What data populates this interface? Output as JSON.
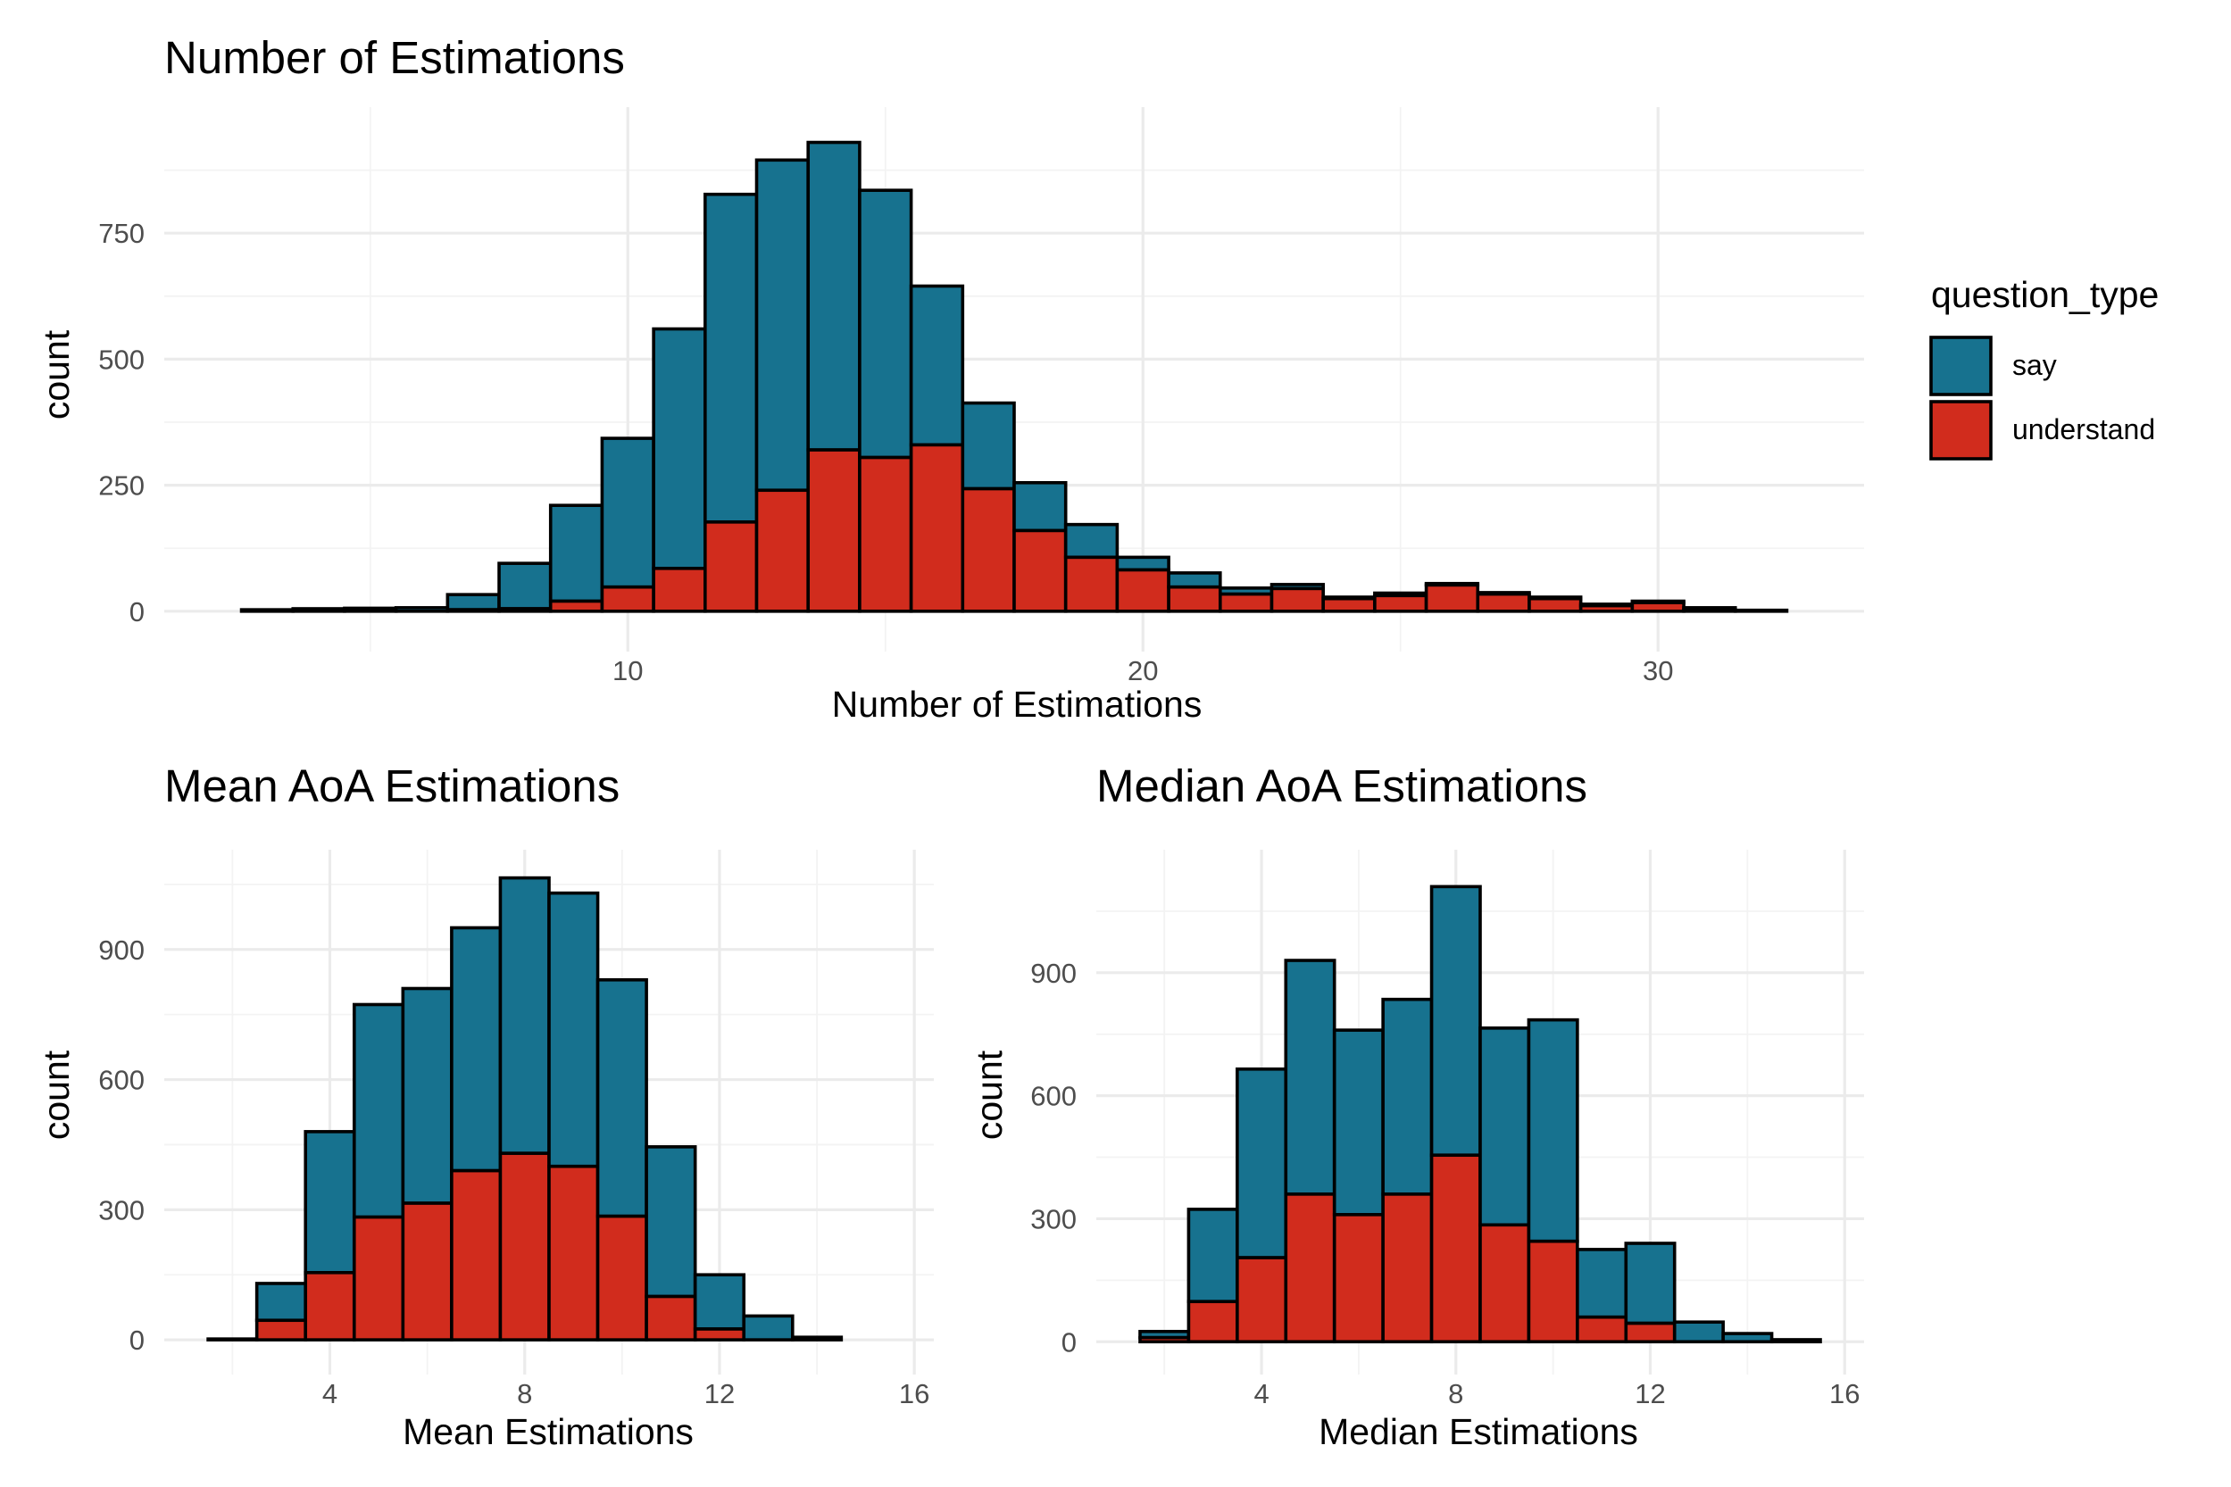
{
  "chart_data": [
    {
      "type": "bar",
      "stacked": true,
      "title": "Number of Estimations",
      "xlabel": "Number of Estimations",
      "ylabel": "count",
      "xlim": [
        1,
        34
      ],
      "ylim": [
        -80,
        1000
      ],
      "xticks": [
        10,
        20,
        30
      ],
      "yticks": [
        0,
        250,
        500,
        750
      ],
      "grid": true,
      "bin_width": 1,
      "bin_centers": [
        3,
        4,
        5,
        6,
        7,
        8,
        9,
        10,
        11,
        12,
        13,
        14,
        15,
        16,
        17,
        18,
        19,
        20,
        21,
        22,
        23,
        24,
        25,
        26,
        27,
        28,
        29,
        30,
        31,
        32
      ],
      "series": [
        {
          "name": "say",
          "values": [
            3,
            5,
            6,
            7,
            30,
            90,
            190,
            295,
            475,
            650,
            655,
            610,
            530,
            315,
            170,
            95,
            65,
            25,
            28,
            12,
            8,
            3,
            5,
            3,
            3,
            3,
            3,
            3,
            3,
            2
          ]
        },
        {
          "name": "understand",
          "values": [
            0,
            0,
            0,
            0,
            3,
            5,
            20,
            48,
            85,
            177,
            240,
            320,
            305,
            330,
            243,
            160,
            107,
            82,
            48,
            34,
            45,
            25,
            31,
            52,
            34,
            25,
            11,
            17,
            4,
            0
          ]
        }
      ]
    },
    {
      "type": "bar",
      "stacked": true,
      "title": "Mean AoA Estimations",
      "xlabel": "Mean Estimations",
      "ylabel": "count",
      "xlim": [
        0.6,
        16.4
      ],
      "ylim": [
        -80,
        1130
      ],
      "xticks": [
        4,
        8,
        12,
        16
      ],
      "yticks": [
        0,
        300,
        600,
        900
      ],
      "grid": true,
      "bin_width": 1,
      "bin_centers": [
        2,
        3,
        4,
        5,
        6,
        7,
        8,
        9,
        10,
        11,
        12,
        13,
        14,
        15
      ],
      "series": [
        {
          "name": "say",
          "values": [
            2,
            85,
            325,
            490,
            495,
            560,
            635,
            630,
            545,
            345,
            125,
            55,
            6,
            0
          ]
        },
        {
          "name": "understand",
          "values": [
            0,
            45,
            155,
            283,
            315,
            390,
            430,
            400,
            285,
            100,
            25,
            0,
            0,
            0
          ]
        }
      ]
    },
    {
      "type": "bar",
      "stacked": true,
      "title": "Median AoA Estimations",
      "xlabel": "Median Estimations",
      "ylabel": "count",
      "xlim": [
        0.6,
        16.4
      ],
      "ylim": [
        -80,
        1200
      ],
      "xticks": [
        4,
        8,
        12,
        16
      ],
      "yticks": [
        0,
        300,
        600,
        900
      ],
      "grid": true,
      "bin_width": 1,
      "bin_centers": [
        2,
        3,
        4,
        5,
        6,
        7,
        8,
        9,
        10,
        11,
        12,
        13,
        14,
        15
      ],
      "series": [
        {
          "name": "say",
          "values": [
            15,
            225,
            460,
            570,
            450,
            475,
            655,
            480,
            540,
            165,
            195,
            48,
            20,
            5
          ]
        },
        {
          "name": "understand",
          "values": [
            10,
            98,
            205,
            360,
            310,
            360,
            455,
            285,
            245,
            60,
            45,
            0,
            0,
            0
          ]
        }
      ]
    }
  ],
  "legend": {
    "title": "question_type",
    "placement": "right",
    "items": [
      {
        "label": "say",
        "color": "#17728f"
      },
      {
        "label": "understand",
        "color": "#d12c1d"
      }
    ]
  },
  "colors": {
    "say": "#17728f",
    "understand": "#d12c1d"
  }
}
